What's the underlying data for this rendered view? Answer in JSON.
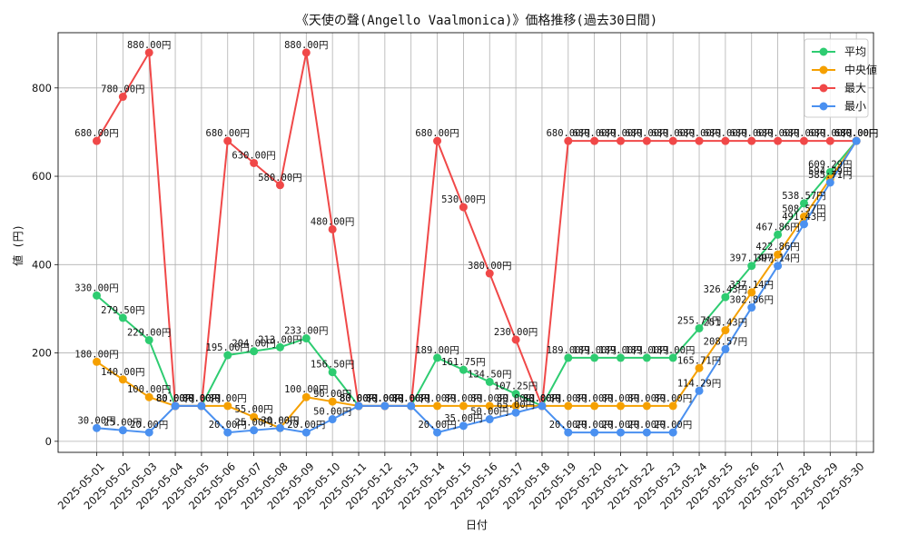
{
  "chart_data": {
    "type": "line",
    "title": "《天使の聲(Angello Vaalmonica)》価格推移(過去30日間)",
    "xlabel": "日付",
    "ylabel": "値 (円)",
    "x": [
      "2025-05-01",
      "2025-05-02",
      "2025-05-03",
      "2025-05-04",
      "2025-05-05",
      "2025-05-06",
      "2025-05-07",
      "2025-05-08",
      "2025-05-09",
      "2025-05-10",
      "2025-05-11",
      "2025-05-12",
      "2025-05-13",
      "2025-05-14",
      "2025-05-15",
      "2025-05-16",
      "2025-05-17",
      "2025-05-18",
      "2025-05-19",
      "2025-05-20",
      "2025-05-21",
      "2025-05-22",
      "2025-05-23",
      "2025-05-24",
      "2025-05-25",
      "2025-05-26",
      "2025-05-27",
      "2025-05-28",
      "2025-05-29",
      "2025-05-30"
    ],
    "ylim": [
      -25,
      925
    ],
    "yticks": [
      0,
      200,
      400,
      600,
      800
    ],
    "grid": true,
    "legend_position": "top-right",
    "value_suffix": "円",
    "series": [
      {
        "name": "平均",
        "color": "#2ecc71",
        "values": [
          330,
          279.5,
          229,
          80,
          80,
          195,
          204,
          213,
          233,
          156.5,
          80,
          80,
          80,
          189,
          161.75,
          134.5,
          107.25,
          80,
          189,
          189,
          189,
          189,
          189,
          255.71,
          326.43,
          397.14,
          467.86,
          538.57,
          609.29,
          680
        ]
      },
      {
        "name": "中央値",
        "color": "#f5a000",
        "values": [
          180,
          140,
          100,
          80,
          80,
          80,
          55,
          30,
          100,
          90,
          80,
          80,
          80,
          80,
          80,
          80,
          80,
          80,
          80,
          80,
          80,
          80,
          80,
          165.71,
          251.43,
          337.14,
          422.86,
          508.57,
          594.29,
          680
        ]
      },
      {
        "name": "最大",
        "color": "#f04848",
        "values": [
          680,
          780,
          880,
          80,
          80,
          680,
          630,
          580,
          880,
          480,
          80,
          80,
          80,
          680,
          530,
          380,
          230,
          80,
          680,
          680,
          680,
          680,
          680,
          680,
          680,
          680,
          680,
          680,
          680,
          680
        ]
      },
      {
        "name": "最小",
        "color": "#4a90f0",
        "values": [
          30,
          25,
          20,
          80,
          80,
          20,
          25,
          30,
          20,
          50,
          80,
          80,
          80,
          20,
          35,
          50,
          65,
          80,
          20,
          20,
          20,
          20,
          20,
          114.29,
          208.57,
          302.86,
          397.14,
          491.43,
          585.71,
          680
        ]
      }
    ]
  }
}
